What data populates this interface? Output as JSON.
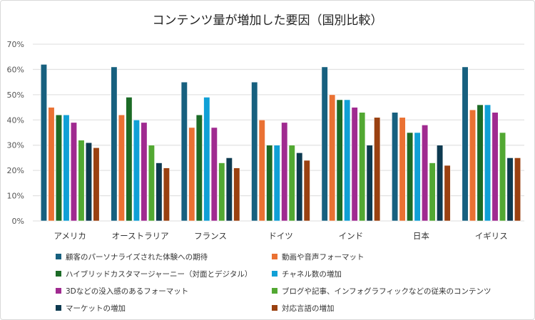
{
  "chart_data": {
    "type": "bar",
    "title": "コンテンツ量が増加した要因（国別比較）",
    "categories": [
      "アメリカ",
      "オーストラリア",
      "フランス",
      "ドイツ",
      "インド",
      "日本",
      "イギリス"
    ],
    "ylim": [
      0,
      70
    ],
    "yticks": [
      "0%",
      "10%",
      "20%",
      "30%",
      "40%",
      "50%",
      "60%",
      "70%"
    ],
    "grid": true,
    "legend_position": "bottom",
    "series": [
      {
        "name": "顧客のパーソナライズされた体験への期待",
        "color": "#17607f",
        "values": [
          62,
          61,
          55,
          55,
          61,
          43,
          61
        ]
      },
      {
        "name": "動画や音声フォーマット",
        "color": "#ea7133",
        "values": [
          45,
          42,
          37,
          40,
          50,
          41,
          44
        ]
      },
      {
        "name": "ハイブリッドカスタマージャーニー（対面とデジタル）",
        "color": "#1c6b26",
        "values": [
          42,
          49,
          42,
          30,
          48,
          35,
          46
        ]
      },
      {
        "name": "チャネル数の増加",
        "color": "#10a0d6",
        "values": [
          42,
          40,
          49,
          30,
          48,
          35,
          46
        ]
      },
      {
        "name": "3Dなどの没入感のあるフォーマット",
        "color": "#a02a90",
        "values": [
          39,
          39,
          37,
          39,
          45,
          38,
          43
        ]
      },
      {
        "name": "ブログや記事、インフォグラフィックなどの従来のコンテンツ",
        "color": "#52a832",
        "values": [
          32,
          30,
          23,
          30,
          43,
          23,
          35
        ]
      },
      {
        "name": "マーケットの増加",
        "color": "#0d3a50",
        "values": [
          31,
          23,
          25,
          27,
          30,
          30,
          25
        ]
      },
      {
        "name": "対応言語の増加",
        "color": "#9a4111",
        "values": [
          29,
          21,
          21,
          24,
          41,
          22,
          25
        ]
      }
    ]
  }
}
